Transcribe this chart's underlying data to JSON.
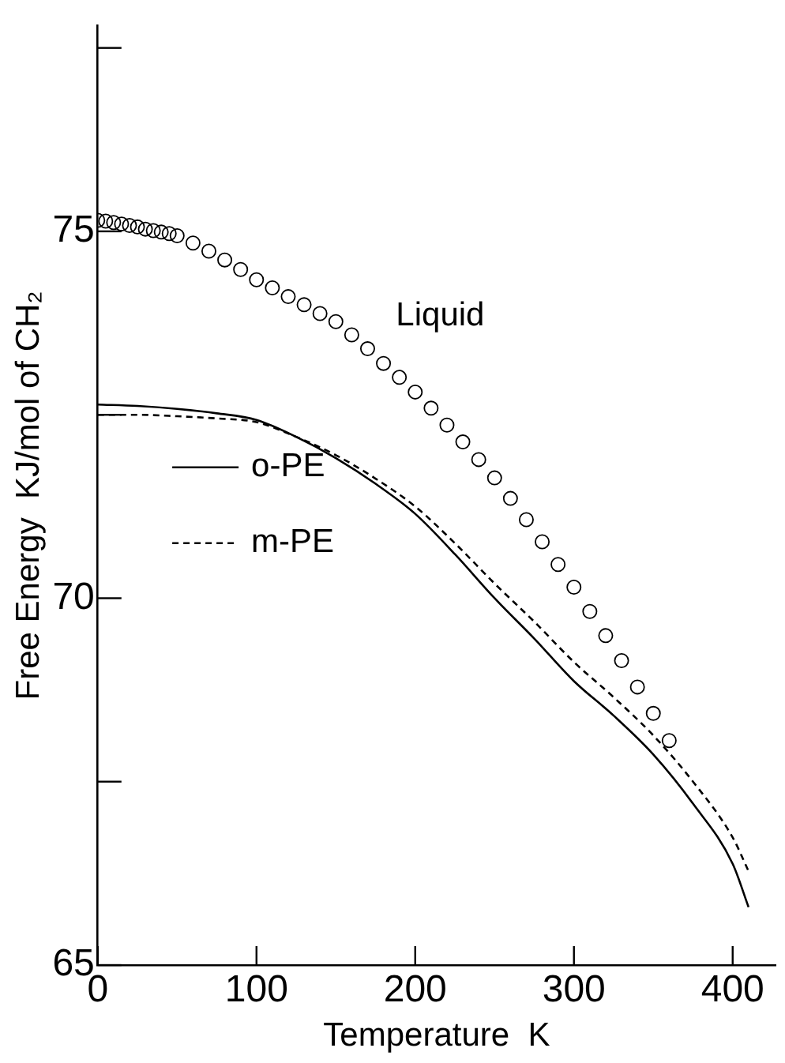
{
  "chart_data": {
    "type": "line",
    "xlabel": "Temperature  K",
    "ylabel": "Free Energy  KJ/mol of CH₂",
    "xlim": [
      0,
      427
    ],
    "ylim": [
      65,
      77.8
    ],
    "xticks": [
      0,
      100,
      200,
      300,
      400
    ],
    "yticks": [
      65,
      {
        "value": 67.5,
        "label": null
      },
      70,
      {
        "value": 72.5,
        "label": null
      },
      75,
      {
        "value": 77.5,
        "label": null
      }
    ],
    "grid": false,
    "legend": "left",
    "series": [
      {
        "type": "scatter",
        "name": "Liquid",
        "color": "#000000",
        "marker": "circle",
        "x": [
          0,
          5,
          10,
          15,
          20,
          25,
          30,
          35,
          40,
          45,
          50,
          60,
          70,
          80,
          90,
          100,
          110,
          120,
          130,
          140,
          150,
          160,
          170,
          180,
          190,
          200,
          210,
          220,
          230,
          240,
          250,
          260,
          270,
          280,
          290,
          300,
          310,
          320,
          330,
          340,
          350,
          360
        ],
        "values": [
          75.15,
          75.14,
          75.12,
          75.1,
          75.08,
          75.06,
          75.03,
          75.01,
          74.99,
          74.97,
          74.94,
          74.84,
          74.73,
          74.61,
          74.48,
          74.34,
          74.23,
          74.11,
          74.0,
          73.88,
          73.77,
          73.59,
          73.4,
          73.2,
          73.01,
          72.81,
          72.59,
          72.36,
          72.13,
          71.89,
          71.64,
          71.36,
          71.07,
          70.77,
          70.46,
          70.15,
          69.82,
          69.49,
          69.15,
          68.79,
          68.43,
          68.06
        ]
      },
      {
        "type": "line",
        "name": "o-PE",
        "color": "#000000",
        "line_style": "solid",
        "marker": "none",
        "x": [
          0,
          25,
          50,
          75,
          100,
          125,
          150,
          175,
          200,
          225,
          250,
          275,
          300,
          325,
          350,
          375,
          400,
          410
        ],
        "values": [
          72.64,
          72.62,
          72.58,
          72.52,
          72.43,
          72.2,
          71.91,
          71.56,
          71.15,
          70.6,
          70.0,
          69.45,
          68.87,
          68.4,
          67.87,
          67.2,
          66.38,
          65.79
        ]
      },
      {
        "type": "line",
        "name": "m-PE",
        "color": "#000000",
        "line_style": "dashed",
        "marker": "none",
        "x": [
          0,
          25,
          50,
          75,
          100,
          125,
          150,
          175,
          200,
          225,
          250,
          275,
          300,
          325,
          350,
          375,
          400,
          410
        ],
        "values": [
          72.5,
          72.5,
          72.48,
          72.45,
          72.4,
          72.2,
          71.95,
          71.63,
          71.25,
          70.75,
          70.2,
          69.68,
          69.13,
          68.65,
          68.13,
          67.5,
          66.74,
          66.28
        ]
      }
    ]
  }
}
